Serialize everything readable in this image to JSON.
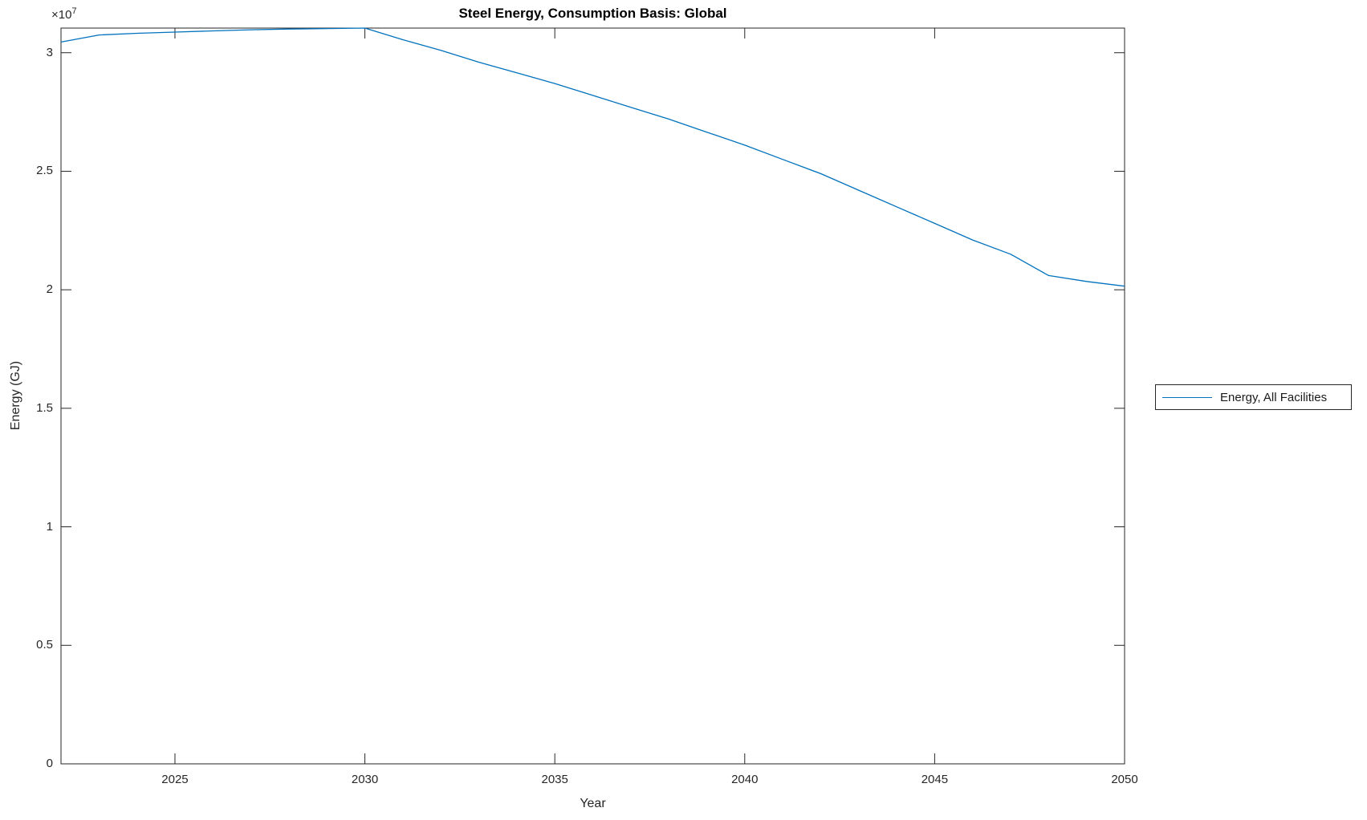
{
  "figure": {
    "background_color": "#ffffff",
    "axis_color": "#262626",
    "text_color": "#262626",
    "title_color": "#000000"
  },
  "chart_data": {
    "type": "line",
    "title": "Steel Energy, Consumption Basis: Global",
    "xlabel": "Year",
    "ylabel": "Energy (GJ)",
    "y_exponent": {
      "base": "×10",
      "power": "7"
    },
    "xlim": [
      2022,
      2050
    ],
    "ylim": [
      0,
      31040000
    ],
    "grid": false,
    "x_ticks": [
      2025,
      2030,
      2035,
      2040,
      2045,
      2050
    ],
    "x_tick_labels": [
      "2025",
      "2030",
      "2035",
      "2040",
      "2045",
      "2050"
    ],
    "y_ticks": [
      0,
      5000000,
      10000000,
      15000000,
      20000000,
      25000000,
      30000000
    ],
    "y_tick_labels": [
      "0",
      "0.5",
      "1",
      "1.5",
      "2",
      "2.5",
      "3"
    ],
    "legend": {
      "position": "right-outside",
      "entries": [
        {
          "label": "Energy, All Facilities",
          "color": "#0072BD"
        }
      ]
    },
    "series": [
      {
        "name": "Energy, All Facilities",
        "color": "#0072BD",
        "x": [
          2022,
          2023,
          2024,
          2025,
          2026,
          2027,
          2028,
          2029,
          2030,
          2031,
          2032,
          2033,
          2034,
          2035,
          2036,
          2037,
          2038,
          2039,
          2040,
          2041,
          2042,
          2043,
          2044,
          2045,
          2046,
          2047,
          2048,
          2049,
          2050
        ],
        "values": [
          30450000,
          30750000,
          30820000,
          30870000,
          30920000,
          30970000,
          31000000,
          31020000,
          31040000,
          30550000,
          30100000,
          29600000,
          29150000,
          28700000,
          28200000,
          27700000,
          27200000,
          26650000,
          26100000,
          25500000,
          24900000,
          24200000,
          23500000,
          22800000,
          22100000,
          21500000,
          20600000,
          20350000,
          20150000
        ]
      }
    ]
  }
}
